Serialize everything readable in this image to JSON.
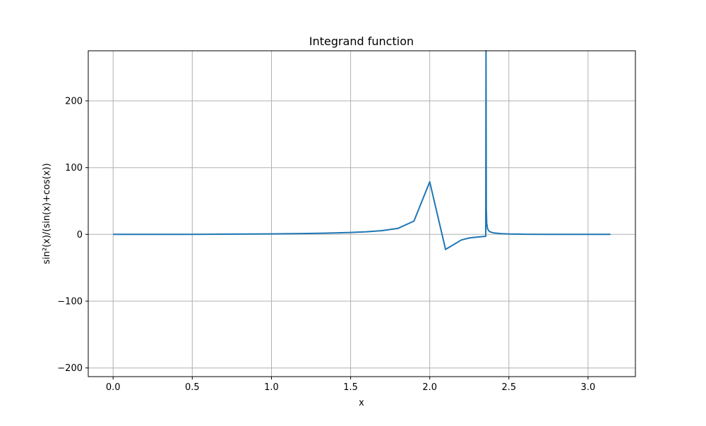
{
  "chart_data": {
    "type": "line",
    "title": "Integrand function",
    "xlabel": "x",
    "ylabel": "sin²(x)/(sin(x)+cos(x))",
    "xlim": [
      -0.157,
      3.299
    ],
    "ylim": [
      -213,
      275
    ],
    "xticks": [
      0.0,
      0.5,
      1.0,
      1.5,
      2.0,
      2.5,
      3.0
    ],
    "xtick_labels": [
      "0.0",
      "0.5",
      "1.0",
      "1.5",
      "2.0",
      "2.5",
      "3.0"
    ],
    "yticks": [
      -200,
      -100,
      0,
      100,
      200
    ],
    "ytick_labels": [
      "−200",
      "−100",
      "0",
      "100",
      "200"
    ],
    "grid": true,
    "line_color": "#1f77b4",
    "series": [
      {
        "x": [
          0.0,
          0.1,
          0.2,
          0.3,
          0.4,
          0.5,
          0.6,
          0.7,
          0.8,
          0.9,
          1.0,
          1.1,
          1.2,
          1.3,
          1.4,
          1.5,
          1.6,
          1.7,
          1.8,
          1.9,
          2.0,
          2.1,
          2.2,
          2.25,
          2.3,
          2.32,
          2.34,
          2.345,
          2.35,
          2.352,
          2.3535,
          2.3555,
          2.357,
          2.36,
          2.365,
          2.37,
          2.38,
          2.4,
          2.45,
          2.5,
          2.6,
          2.7,
          2.8,
          2.9,
          3.0,
          3.1,
          3.1416
        ],
        "y": [
          0.0,
          0.009,
          0.033,
          0.068,
          0.113,
          0.171,
          0.244,
          0.337,
          0.456,
          0.608,
          0.801,
          1.041,
          1.343,
          1.728,
          2.23,
          2.923,
          3.958,
          5.692,
          9.181,
          19.93,
          78.7,
          -22.43,
          -8.27,
          -5.38,
          -3.92,
          -3.49,
          -3.08,
          -2.99,
          -2.9,
          -2.86,
          -2.84,
          275,
          40,
          17,
          8.6,
          6.2,
          4.0,
          2.4,
          1.1,
          0.63,
          0.28,
          0.13,
          0.05,
          0.015,
          0.002,
          0.0,
          0.0
        ]
      }
    ]
  }
}
